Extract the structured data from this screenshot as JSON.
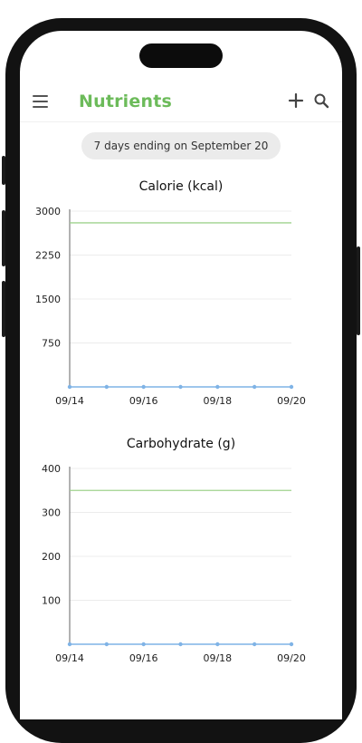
{
  "app": {
    "title": "Nutrients",
    "date_range": "7 days ending on September 20"
  },
  "icons": {
    "menu": "hamburger-menu-icon",
    "add": "plus-icon",
    "search": "search-icon"
  },
  "colors": {
    "accent": "#6cbb5a",
    "target_line": "#9fd38d",
    "data_line": "#7fb3e6"
  },
  "chart_data": [
    {
      "type": "line",
      "title": "Calorie (kcal)",
      "x": [
        "09/14",
        "09/15",
        "09/16",
        "09/17",
        "09/18",
        "09/19",
        "09/20"
      ],
      "x_tick_labels": [
        "09/14",
        "09/16",
        "09/18",
        "09/20"
      ],
      "y_ticks": [
        750,
        1500,
        2250,
        3000
      ],
      "ylim": [
        0,
        3000
      ],
      "series": [
        {
          "values": [
            0,
            0,
            0,
            0,
            0,
            0,
            0
          ]
        }
      ],
      "target": 2800,
      "grid": true
    },
    {
      "type": "line",
      "title": "Carbohydrate (g)",
      "x": [
        "09/14",
        "09/15",
        "09/16",
        "09/17",
        "09/18",
        "09/19",
        "09/20"
      ],
      "x_tick_labels": [
        "09/14",
        "09/16",
        "09/18",
        "09/20"
      ],
      "y_ticks": [
        100,
        200,
        300,
        400
      ],
      "ylim": [
        0,
        400
      ],
      "series": [
        {
          "values": [
            0,
            0,
            0,
            0,
            0,
            0,
            0
          ]
        }
      ],
      "target": 350,
      "grid": true
    }
  ]
}
